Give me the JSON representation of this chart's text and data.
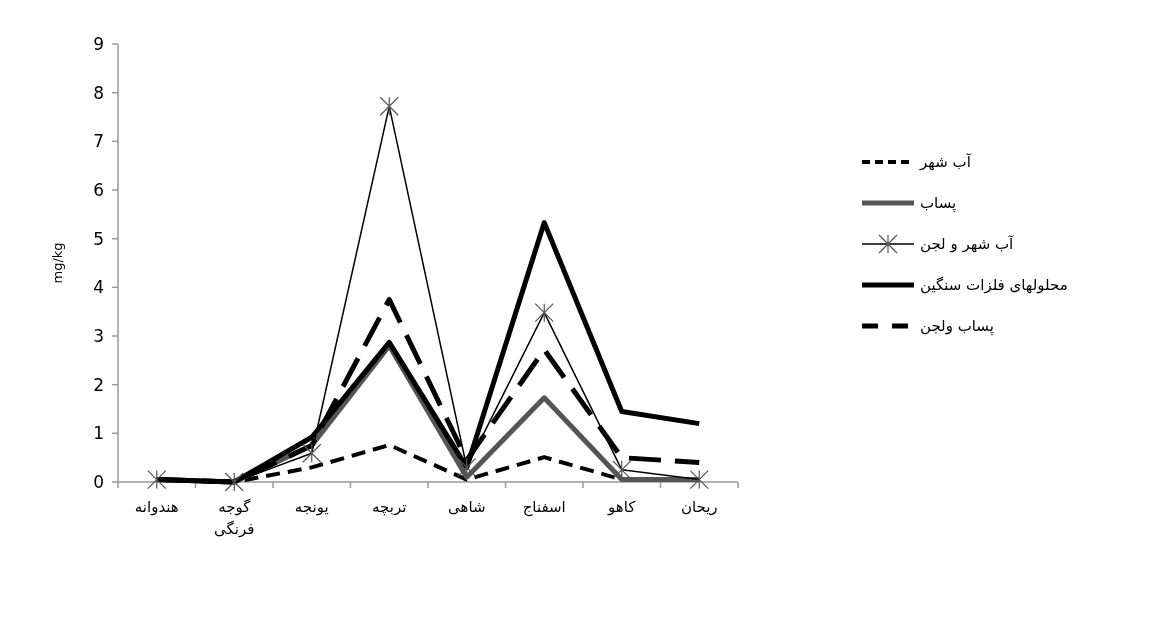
{
  "chart_data": {
    "type": "line",
    "ylabel": "mg/kg",
    "categories": [
      "هندوانه",
      "گوجه فرنگی",
      "یونجه",
      "تربچه",
      "شاهی",
      "اسفناج",
      "کاهو",
      "ریحان"
    ],
    "ylim": [
      0,
      9
    ],
    "yticks": [
      0,
      1,
      2,
      3,
      4,
      5,
      6,
      7,
      8,
      9
    ],
    "grid": false,
    "legend": "right",
    "series": [
      {
        "name": "آب شهر",
        "color": "#000000",
        "line_style": "dashed",
        "marker": "none",
        "values": [
          0.05,
          0,
          0.3,
          0.76,
          0.05,
          0.51,
          0.05,
          0.05
        ]
      },
      {
        "name": "پساب",
        "color": "#555555",
        "line_style": "solid",
        "marker": "none",
        "values": [
          0.05,
          0,
          0.75,
          2.8,
          0.1,
          1.73,
          0.05,
          0.05
        ]
      },
      {
        "name": "آب شهر و لجن",
        "color": "#000000",
        "line_style": "solid",
        "marker": "cross",
        "values": [
          0.05,
          0,
          0.59,
          7.72,
          0.3,
          3.48,
          0.25,
          0.05
        ]
      },
      {
        "name": "محلولهای فلزات سنگین",
        "color": "#000000",
        "line_style": "solid",
        "marker": "none",
        "values": [
          0.05,
          0,
          0.92,
          2.87,
          0.3,
          5.33,
          1.45,
          1.2
        ]
      },
      {
        "name": "پساب ولجن",
        "color": "#000000",
        "line_style": "longdash",
        "marker": "none",
        "values": [
          0.05,
          0,
          0.75,
          3.75,
          0.45,
          2.72,
          0.5,
          0.4
        ]
      }
    ]
  }
}
